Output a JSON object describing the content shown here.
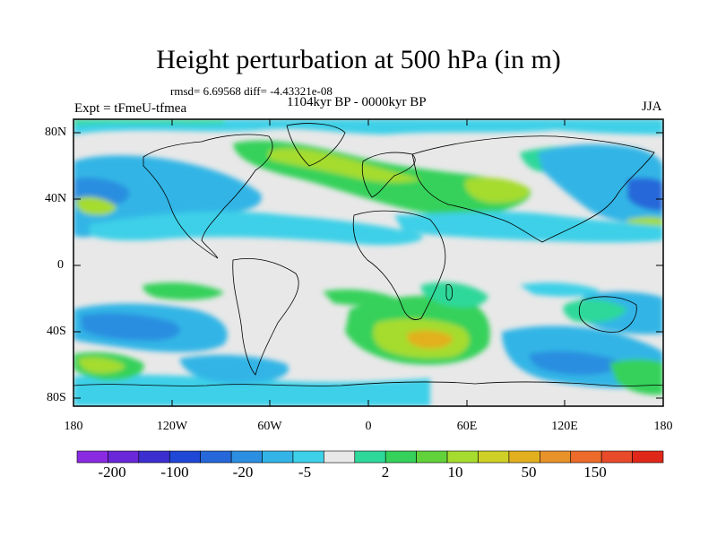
{
  "title": "Height perturbation at 500 hPa (in m)",
  "stats": "rmsd= 6.69568  diff= -4.43321e-08",
  "period": "1104kyr BP - 0000kyr BP",
  "experiment": "Expt = tFmeU-tfmea",
  "season": "JJA",
  "axes": {
    "lat_labels": [
      "80N",
      "40N",
      "0",
      "40S",
      "80S"
    ],
    "lon_labels": [
      "180",
      "120W",
      "60W",
      "0",
      "60E",
      "120E",
      "180"
    ]
  },
  "colorbar": {
    "labels": [
      "-200",
      "-100",
      "-20",
      "-5",
      "2",
      "10",
      "50",
      "150"
    ],
    "colors": [
      "#8a2be2",
      "#6a28d8",
      "#3c2fd0",
      "#1f48d6",
      "#2668d9",
      "#2b8ee0",
      "#32b5e6",
      "#3dd0e8",
      "#e8e8e8",
      "#2ed89a",
      "#35d15a",
      "#62d23a",
      "#a5dc2e",
      "#cfd027",
      "#e2b01f",
      "#e8922a",
      "#ec6a2a",
      "#e84a2a",
      "#e0281a"
    ]
  },
  "map_colors": {
    "background": "#e8e8e8",
    "light_blue": "#32b5e6",
    "medium_blue": "#2b8ee0",
    "dark_blue": "#2668d9",
    "cyan": "#3dd0e8",
    "teal": "#2ed89a",
    "green": "#35d15a",
    "lime": "#a5dc2e",
    "yellow": "#cfd027",
    "orange": "#e2b01f"
  }
}
